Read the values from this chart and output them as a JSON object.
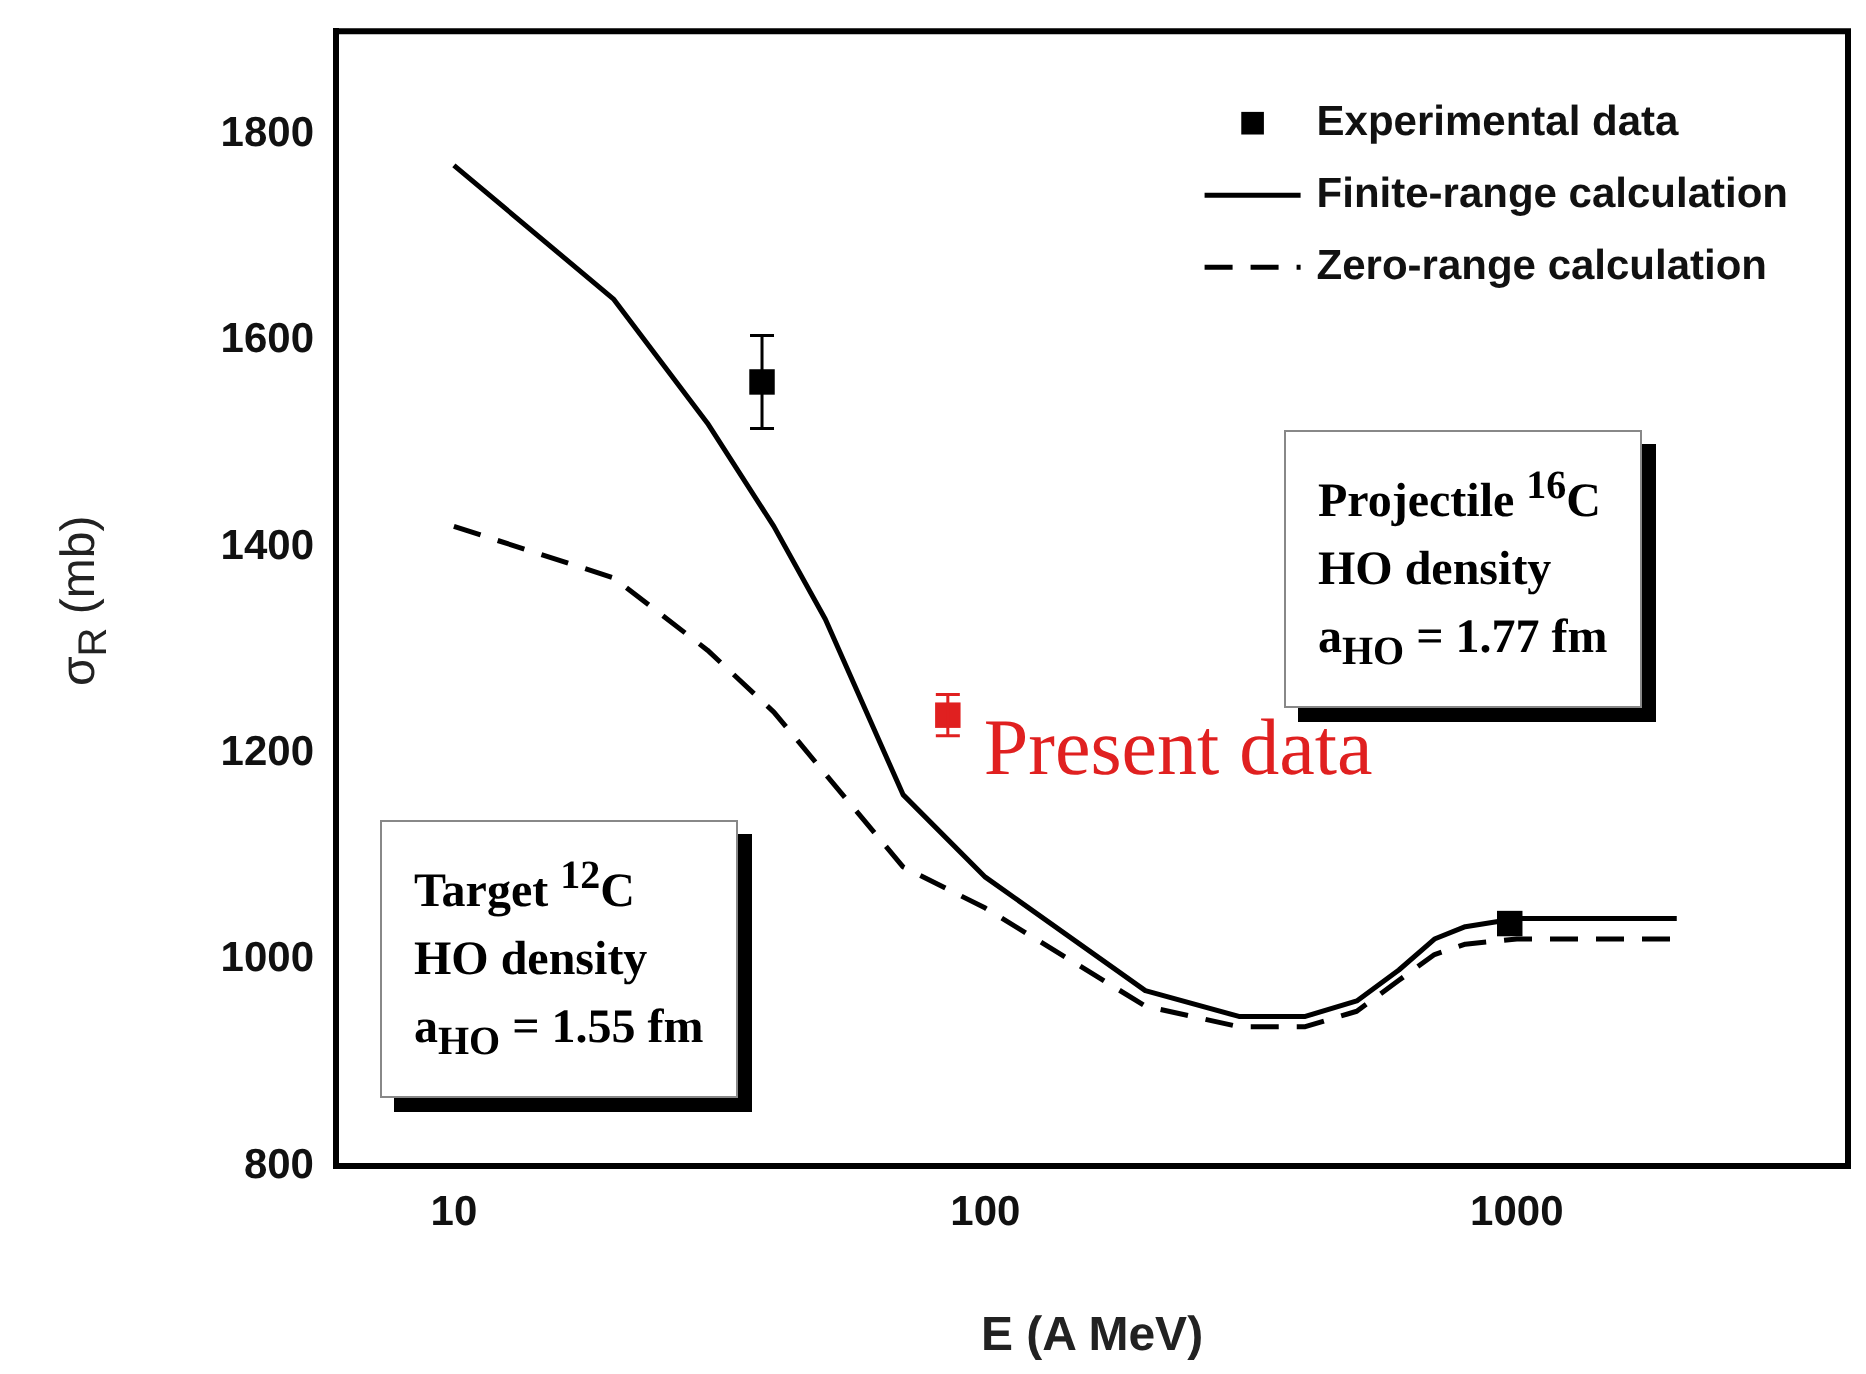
{
  "chart_data": {
    "type": "line",
    "xlabel": "E (A MeV)",
    "ylabel": "σ$_{R}$ (mb)",
    "log": "x",
    "xlim": [
      6,
      4200
    ],
    "xticks": [
      10,
      100,
      1000
    ],
    "ylim": [
      800,
      1900
    ],
    "yticks": [
      800,
      1000,
      1200,
      1400,
      1600,
      1800
    ],
    "grid": false,
    "legend": "top right",
    "marker": "none",
    "series": [
      {
        "name": "Experimental data",
        "type": "scatter",
        "marker": "square",
        "color": "#000000",
        "x": [
          38,
          970
        ],
        "values": [
          1560,
          1035
        ],
        "errors": [
          45,
          null
        ]
      },
      {
        "name": "Finite-range calculation",
        "line_style": "solid",
        "color": "#000000",
        "x": [
          10,
          20,
          30,
          40,
          50,
          70,
          100,
          200,
          300,
          400,
          500,
          600,
          700,
          800,
          1000,
          2000
        ],
        "values": [
          1770,
          1640,
          1520,
          1420,
          1330,
          1160,
          1080,
          970,
          945,
          945,
          960,
          990,
          1020,
          1032,
          1040,
          1040
        ]
      },
      {
        "name": "Zero-range calculation",
        "line_style": "dashed",
        "color": "#000000",
        "x": [
          10,
          20,
          30,
          40,
          50,
          70,
          100,
          200,
          300,
          400,
          500,
          600,
          700,
          800,
          1000,
          2000
        ],
        "values": [
          1420,
          1370,
          1300,
          1240,
          1180,
          1090,
          1050,
          955,
          935,
          935,
          950,
          980,
          1005,
          1015,
          1020,
          1020
        ]
      },
      {
        "type": "scatter",
        "marker": "square",
        "color": "#e02020",
        "x": [
          85
        ],
        "values": [
          1237
        ],
        "errors": [
          20
        ]
      }
    ],
    "annotations": [
      "Projectile $^{16}$C\nHO density\na$_{HO}$ = 1.77 fm",
      {
        "text": "Present data",
        "x": 85,
        "y": 1237
      },
      "Target $^{12}$C\nHO density\na$_{HO}$ = 1.55 fm"
    ]
  }
}
